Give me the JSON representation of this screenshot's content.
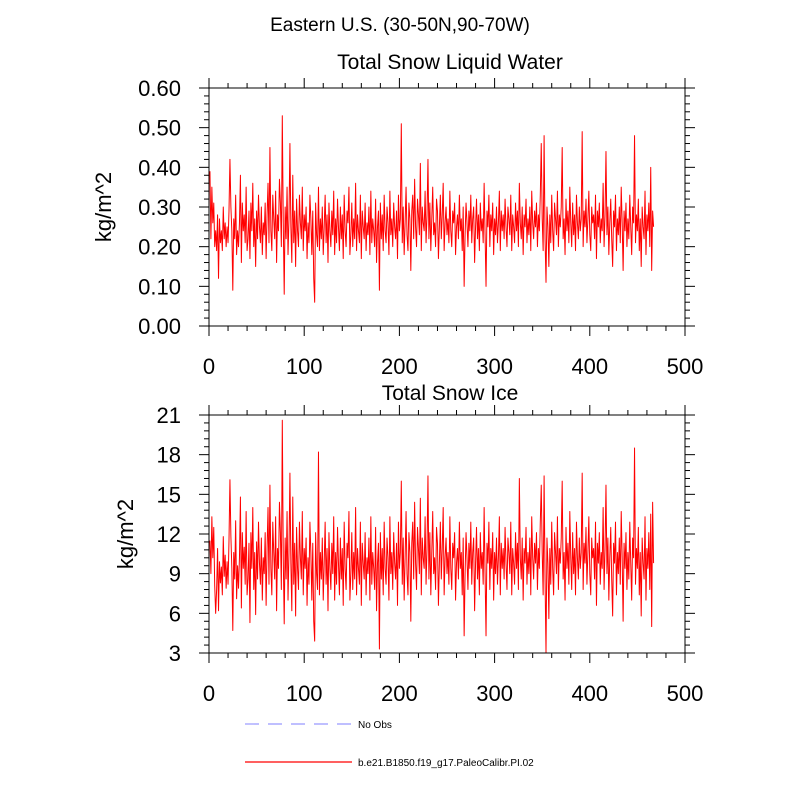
{
  "figure_title": "Eastern U.S. (30-50N,90-70W)",
  "colors": {
    "model": "#ff0000",
    "obs": "#9999ff",
    "axis": "#000000"
  },
  "legend": {
    "obs_label": "No Obs",
    "model_label": "b.e21.B1850.f19_g17.PaleoCalibr.PI.02"
  },
  "chart_data": [
    {
      "type": "line",
      "title": "Total Snow Liquid Water",
      "xlabel": "",
      "ylabel": "kg/m^2",
      "xlim": [
        0,
        500
      ],
      "ylim": [
        0,
        0.6
      ],
      "x_ticks": [
        0,
        100,
        200,
        300,
        400,
        500
      ],
      "x_tick_labels": [
        "0",
        "100",
        "200",
        "300",
        "400",
        "500"
      ],
      "y_ticks": [
        0,
        0.1,
        0.2,
        0.3,
        0.4,
        0.5,
        0.6
      ],
      "y_tick_labels": [
        "0.00",
        "0.10",
        "0.20",
        "0.30",
        "0.40",
        "0.50",
        "0.60"
      ],
      "series": [
        {
          "name": "b.e21.B1850.f19_g17.PaleoCalibr.PI.02",
          "x_start": 1,
          "x_step": 1,
          "values": [
            0.39,
            0.22,
            0.35,
            0.26,
            0.31,
            0.2,
            0.24,
            0.19,
            0.28,
            0.12,
            0.27,
            0.21,
            0.24,
            0.19,
            0.3,
            0.22,
            0.26,
            0.2,
            0.25,
            0.21,
            0.29,
            0.42,
            0.3,
            0.24,
            0.09,
            0.27,
            0.22,
            0.33,
            0.18,
            0.24,
            0.2,
            0.26,
            0.38,
            0.16,
            0.31,
            0.24,
            0.28,
            0.21,
            0.35,
            0.19,
            0.22,
            0.29,
            0.17,
            0.31,
            0.24,
            0.36,
            0.2,
            0.27,
            0.15,
            0.29,
            0.22,
            0.33,
            0.25,
            0.21,
            0.3,
            0.18,
            0.26,
            0.23,
            0.31,
            0.17,
            0.28,
            0.36,
            0.21,
            0.45,
            0.24,
            0.19,
            0.33,
            0.27,
            0.22,
            0.34,
            0.16,
            0.28,
            0.24,
            0.37,
            0.31,
            0.2,
            0.53,
            0.26,
            0.08,
            0.3,
            0.22,
            0.35,
            0.18,
            0.27,
            0.46,
            0.25,
            0.16,
            0.38,
            0.21,
            0.29,
            0.15,
            0.32,
            0.24,
            0.2,
            0.33,
            0.26,
            0.22,
            0.35,
            0.19,
            0.28,
            0.24,
            0.3,
            0.17,
            0.26,
            0.21,
            0.33,
            0.27,
            0.18,
            0.29,
            0.12,
            0.06,
            0.31,
            0.23,
            0.2,
            0.35,
            0.19,
            0.27,
            0.22,
            0.3,
            0.18,
            0.25,
            0.33,
            0.21,
            0.28,
            0.16,
            0.31,
            0.24,
            0.2,
            0.29,
            0.23,
            0.34,
            0.18,
            0.27,
            0.21,
            0.32,
            0.25,
            0.19,
            0.3,
            0.22,
            0.28,
            0.17,
            0.33,
            0.24,
            0.2,
            0.29,
            0.26,
            0.35,
            0.18,
            0.23,
            0.31,
            0.2,
            0.27,
            0.22,
            0.36,
            0.19,
            0.28,
            0.24,
            0.21,
            0.33,
            0.17,
            0.29,
            0.25,
            0.22,
            0.31,
            0.19,
            0.26,
            0.23,
            0.3,
            0.18,
            0.34,
            0.21,
            0.27,
            0.24,
            0.2,
            0.32,
            0.16,
            0.25,
            0.29,
            0.09,
            0.31,
            0.22,
            0.28,
            0.19,
            0.33,
            0.24,
            0.21,
            0.3,
            0.26,
            0.18,
            0.34,
            0.23,
            0.27,
            0.2,
            0.31,
            0.25,
            0.22,
            0.29,
            0.17,
            0.33,
            0.24,
            0.27,
            0.51,
            0.21,
            0.3,
            0.18,
            0.26,
            0.35,
            0.23,
            0.19,
            0.31,
            0.27,
            0.14,
            0.29,
            0.33,
            0.22,
            0.37,
            0.25,
            0.2,
            0.32,
            0.28,
            0.23,
            0.41,
            0.19,
            0.3,
            0.26,
            0.24,
            0.34,
            0.21,
            0.28,
            0.42,
            0.22,
            0.31,
            0.19,
            0.27,
            0.35,
            0.23,
            0.26,
            0.2,
            0.32,
            0.29,
            0.17,
            0.25,
            0.33,
            0.22,
            0.28,
            0.36,
            0.19,
            0.26,
            0.3,
            0.23,
            0.27,
            0.21,
            0.34,
            0.24,
            0.2,
            0.29,
            0.26,
            0.31,
            0.18,
            0.25,
            0.28,
            0.22,
            0.33,
            0.24,
            0.27,
            0.19,
            0.3,
            0.1,
            0.23,
            0.31,
            0.26,
            0.2,
            0.29,
            0.24,
            0.33,
            0.21,
            0.27,
            0.3,
            0.16,
            0.25,
            0.32,
            0.22,
            0.28,
            0.19,
            0.31,
            0.24,
            0.27,
            0.21,
            0.36,
            0.23,
            0.1,
            0.29,
            0.25,
            0.33,
            0.2,
            0.28,
            0.24,
            0.31,
            0.18,
            0.27,
            0.23,
            0.3,
            0.21,
            0.26,
            0.34,
            0.19,
            0.29,
            0.24,
            0.28,
            0.22,
            0.32,
            0.25,
            0.2,
            0.3,
            0.27,
            0.23,
            0.33,
            0.19,
            0.28,
            0.25,
            0.21,
            0.31,
            0.24,
            0.29,
            0.2,
            0.36,
            0.26,
            0.22,
            0.3,
            0.18,
            0.28,
            0.25,
            0.32,
            0.21,
            0.27,
            0.23,
            0.3,
            0.19,
            0.34,
            0.26,
            0.22,
            0.29,
            0.25,
            0.31,
            0.2,
            0.28,
            0.24,
            0.33,
            0.46,
            0.27,
            0.19,
            0.48,
            0.22,
            0.11,
            0.3,
            0.25,
            0.15,
            0.28,
            0.21,
            0.33,
            0.24,
            0.19,
            0.31,
            0.27,
            0.23,
            0.34,
            0.2,
            0.28,
            0.25,
            0.3,
            0.45,
            0.22,
            0.27,
            0.18,
            0.32,
            0.24,
            0.29,
            0.21,
            0.35,
            0.26,
            0.2,
            0.31,
            0.23,
            0.28,
            0.19,
            0.33,
            0.26,
            0.22,
            0.3,
            0.24,
            0.27,
            0.49,
            0.2,
            0.29,
            0.25,
            0.32,
            0.21,
            0.27,
            0.34,
            0.23,
            0.19,
            0.3,
            0.26,
            0.28,
            0.22,
            0.33,
            0.17,
            0.29,
            0.25,
            0.31,
            0.21,
            0.27,
            0.24,
            0.36,
            0.2,
            0.28,
            0.44,
            0.23,
            0.3,
            0.18,
            0.26,
            0.32,
            0.22,
            0.15,
            0.29,
            0.25,
            0.33,
            0.19,
            0.27,
            0.23,
            0.3,
            0.21,
            0.35,
            0.26,
            0.14,
            0.29,
            0.24,
            0.31,
            0.2,
            0.27,
            0.22,
            0.33,
            0.25,
            0.18,
            0.3,
            0.26,
            0.48,
            0.21,
            0.28,
            0.24,
            0.32,
            0.19,
            0.27,
            0.15,
            0.3,
            0.25,
            0.22,
            0.34,
            0.18,
            0.28,
            0.24,
            0.31,
            0.2,
            0.4,
            0.14,
            0.29,
            0.25
          ]
        }
      ]
    },
    {
      "type": "line",
      "title": "Total Snow Ice",
      "xlabel": "",
      "ylabel": "kg/m^2",
      "xlim": [
        0,
        500
      ],
      "ylim": [
        3,
        21
      ],
      "x_ticks": [
        0,
        100,
        200,
        300,
        400,
        500
      ],
      "x_tick_labels": [
        "0",
        "100",
        "200",
        "300",
        "400",
        "500"
      ],
      "y_ticks": [
        3,
        6,
        9,
        12,
        15,
        18,
        21
      ],
      "y_tick_labels": [
        "3",
        "6",
        "9",
        "12",
        "15",
        "18",
        "21"
      ],
      "series": [
        {
          "name": "b.e21.B1850.f19_g17.PaleoCalibr.PI.02",
          "x_start": 1,
          "x_step": 1,
          "values": [
            11.5,
            9.0,
            13.3,
            10.2,
            12.5,
            8.1,
            6.0,
            7.8,
            10.9,
            6.2,
            9.9,
            8.3,
            9.5,
            7.4,
            11.8,
            8.8,
            10.4,
            7.9,
            9.9,
            8.2,
            11.5,
            16.1,
            11.8,
            9.4,
            4.7,
            10.6,
            8.6,
            13.0,
            7.1,
            9.6,
            7.9,
            10.2,
            14.8,
            6.4,
            12.1,
            9.4,
            11.0,
            8.2,
            13.7,
            7.4,
            8.6,
            11.3,
            5.3,
            12.1,
            9.4,
            14.0,
            7.8,
            10.6,
            5.9,
            11.4,
            8.6,
            12.9,
            9.8,
            8.2,
            11.7,
            7.0,
            10.2,
            9.0,
            12.1,
            6.6,
            10.9,
            14.0,
            8.2,
            15.7,
            9.4,
            7.4,
            12.9,
            10.6,
            8.6,
            13.3,
            6.2,
            10.9,
            9.4,
            14.4,
            12.1,
            7.8,
            20.6,
            10.2,
            5.2,
            11.7,
            8.6,
            13.7,
            7.0,
            10.6,
            16.6,
            9.8,
            6.2,
            14.8,
            8.2,
            11.3,
            5.8,
            12.5,
            9.4,
            7.8,
            12.9,
            10.2,
            8.6,
            13.7,
            7.4,
            10.9,
            9.4,
            11.7,
            6.6,
            10.2,
            8.2,
            12.9,
            10.6,
            7.0,
            11.3,
            5.4,
            3.9,
            12.1,
            9.0,
            7.8,
            18.2,
            7.4,
            10.6,
            8.6,
            11.7,
            7.0,
            9.8,
            12.9,
            8.2,
            10.9,
            6.2,
            12.1,
            9.4,
            7.8,
            11.3,
            9.0,
            13.3,
            7.0,
            10.6,
            8.2,
            12.5,
            9.8,
            7.4,
            11.7,
            8.6,
            10.9,
            6.6,
            12.9,
            9.4,
            7.8,
            11.3,
            10.2,
            13.7,
            7.0,
            9.0,
            12.1,
            7.8,
            10.6,
            8.6,
            14.0,
            7.4,
            10.9,
            9.4,
            8.2,
            12.9,
            6.6,
            11.3,
            9.8,
            8.6,
            12.1,
            7.4,
            10.2,
            9.0,
            11.7,
            7.0,
            13.3,
            8.2,
            10.6,
            9.4,
            7.8,
            12.5,
            6.2,
            9.8,
            11.3,
            3.3,
            12.1,
            8.6,
            10.9,
            7.4,
            12.9,
            9.4,
            8.2,
            11.7,
            10.2,
            7.0,
            13.3,
            9.0,
            10.6,
            7.8,
            12.1,
            9.8,
            8.6,
            11.3,
            6.6,
            12.9,
            9.4,
            10.6,
            16.0,
            8.2,
            11.7,
            7.0,
            10.2,
            13.7,
            9.0,
            7.4,
            12.1,
            10.6,
            5.4,
            11.3,
            12.9,
            8.6,
            14.4,
            9.8,
            7.8,
            12.5,
            10.9,
            9.0,
            14.7,
            7.4,
            11.7,
            10.2,
            9.4,
            13.3,
            8.2,
            10.9,
            16.4,
            8.6,
            12.1,
            7.4,
            10.6,
            13.7,
            9.0,
            10.2,
            7.8,
            12.5,
            11.3,
            6.6,
            9.8,
            12.9,
            8.6,
            10.9,
            14.0,
            7.4,
            10.2,
            11.7,
            9.0,
            10.6,
            8.2,
            13.3,
            9.4,
            7.8,
            11.3,
            10.2,
            12.1,
            7.0,
            9.8,
            10.9,
            8.6,
            12.9,
            9.4,
            10.6,
            7.4,
            11.7,
            4.3,
            9.0,
            12.1,
            10.2,
            7.8,
            11.3,
            9.4,
            12.9,
            8.2,
            10.6,
            11.7,
            6.2,
            9.8,
            12.5,
            8.6,
            10.9,
            7.4,
            12.1,
            9.4,
            10.6,
            8.2,
            14.0,
            9.0,
            4.3,
            11.3,
            9.8,
            12.9,
            7.8,
            10.9,
            9.4,
            12.1,
            7.0,
            10.6,
            9.0,
            11.7,
            8.2,
            10.2,
            13.3,
            7.4,
            11.3,
            9.4,
            10.9,
            8.6,
            12.5,
            9.8,
            7.8,
            11.7,
            10.6,
            9.0,
            12.9,
            7.4,
            10.9,
            9.8,
            8.2,
            12.1,
            9.4,
            11.3,
            7.8,
            16.2,
            10.2,
            8.6,
            11.7,
            7.0,
            10.9,
            9.8,
            12.5,
            8.2,
            10.6,
            9.0,
            11.7,
            7.4,
            13.3,
            10.2,
            8.6,
            11.3,
            9.8,
            12.1,
            7.8,
            10.9,
            9.4,
            12.9,
            15.7,
            10.6,
            7.4,
            16.4,
            8.6,
            3.0,
            11.7,
            9.8,
            5.6,
            10.9,
            8.2,
            12.9,
            9.4,
            7.4,
            12.1,
            10.6,
            9.0,
            13.3,
            7.8,
            10.9,
            9.8,
            11.7,
            16.0,
            8.6,
            10.6,
            7.0,
            12.5,
            9.4,
            11.3,
            8.2,
            13.7,
            10.2,
            7.8,
            12.1,
            9.0,
            10.9,
            7.4,
            12.9,
            10.2,
            8.6,
            11.7,
            9.4,
            10.6,
            16.6,
            7.8,
            11.3,
            9.8,
            12.5,
            8.2,
            10.6,
            13.3,
            9.0,
            7.4,
            11.7,
            10.2,
            10.9,
            8.6,
            12.9,
            6.6,
            11.3,
            9.8,
            12.1,
            8.2,
            10.6,
            9.4,
            14.0,
            7.8,
            10.9,
            15.7,
            9.0,
            11.7,
            7.0,
            10.2,
            12.5,
            8.6,
            5.8,
            11.3,
            9.8,
            12.9,
            7.4,
            10.6,
            9.0,
            11.7,
            8.2,
            13.7,
            10.2,
            5.4,
            11.3,
            9.4,
            12.1,
            7.8,
            10.6,
            8.6,
            12.9,
            9.8,
            7.0,
            11.7,
            10.2,
            18.5,
            8.2,
            10.9,
            9.4,
            12.5,
            7.4,
            10.6,
            5.8,
            11.7,
            9.8,
            8.6,
            13.3,
            7.0,
            10.9,
            9.4,
            12.1,
            7.8,
            13.5,
            5.0,
            14.4,
            9.8
          ]
        }
      ]
    }
  ]
}
